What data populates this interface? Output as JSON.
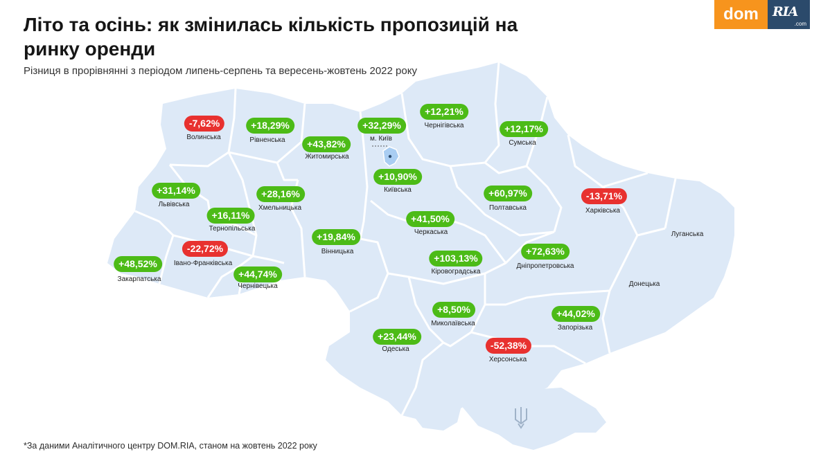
{
  "title": "Літо та осінь: як змінилась кількість пропозицій на ринку оренди",
  "subtitle": "Різниця в прорівнянні з періодом липень-серпень та вересень-жовтень 2022 року",
  "footnote": "*За даними Аналітичного центру DOM.RIA, станом на жовтень 2022 року",
  "logo": {
    "dom": "dom",
    "ria": "RIA",
    "com": ".com"
  },
  "colors": {
    "map_fill": "#dde9f7",
    "border": "#ffffff",
    "positive": "#4cbb17",
    "negative": "#e8312f",
    "kyiv_city": "#a9cdf2"
  },
  "regions": {
    "volynska": {
      "name": "Волинська",
      "value": "-7,62%",
      "sign": "neg"
    },
    "rivnenska": {
      "name": "Рівненська",
      "value": "+18,29%",
      "sign": "pos"
    },
    "zhytomyrska": {
      "name": "Житомирська",
      "value": "+43,82%",
      "sign": "pos"
    },
    "kyiv_city": {
      "name": "м. Київ",
      "value": "+32,29%",
      "sign": "pos"
    },
    "chernihivska": {
      "name": "Чернігівська",
      "value": "+12,21%",
      "sign": "pos"
    },
    "sumska": {
      "name": "Сумська",
      "value": "+12,17%",
      "sign": "pos"
    },
    "kyivska": {
      "name": "Київська",
      "value": "+10,90%",
      "sign": "pos"
    },
    "lvivska": {
      "name": "Львівська",
      "value": "+31,14%",
      "sign": "pos"
    },
    "khmelnytska": {
      "name": "Хмельницька",
      "value": "+28,16%",
      "sign": "pos"
    },
    "ternopilska": {
      "name": "Тернопільська",
      "value": "+16,11%",
      "sign": "pos"
    },
    "poltavska": {
      "name": "Полтавська",
      "value": "+60,97%",
      "sign": "pos"
    },
    "kharkivska": {
      "name": "Харківська",
      "value": "-13,71%",
      "sign": "neg"
    },
    "cherkaska": {
      "name": "Черкаська",
      "value": "+41,50%",
      "sign": "pos"
    },
    "vinnytska": {
      "name": "Вінницька",
      "value": "+19,84%",
      "sign": "pos"
    },
    "ivano_frankivska": {
      "name": "Івано-Франківська",
      "value": "-22,72%",
      "sign": "neg"
    },
    "zakarpatska": {
      "name": "Закарпатська",
      "value": "+48,52%",
      "sign": "pos"
    },
    "chernivetska": {
      "name": "Чернівецька",
      "value": "+44,74%",
      "sign": "pos"
    },
    "kirovohradska": {
      "name": "Кіровоградська",
      "value": "+103,13%",
      "sign": "pos"
    },
    "dnipropetrovska": {
      "name": "Дніпропетровська",
      "value": "+72,63%",
      "sign": "pos"
    },
    "mykolaivska": {
      "name": "Миколаївська",
      "value": "+8,50%",
      "sign": "pos"
    },
    "zaporizka": {
      "name": "Запорізька",
      "value": "+44,02%",
      "sign": "pos"
    },
    "odeska": {
      "name": "Одеська",
      "value": "+23,44%",
      "sign": "pos"
    },
    "khersonska": {
      "name": "Херсонська",
      "value": "-52,38%",
      "sign": "neg"
    },
    "luhanska": {
      "name": "Луганська"
    },
    "donetska": {
      "name": "Донецька"
    }
  }
}
